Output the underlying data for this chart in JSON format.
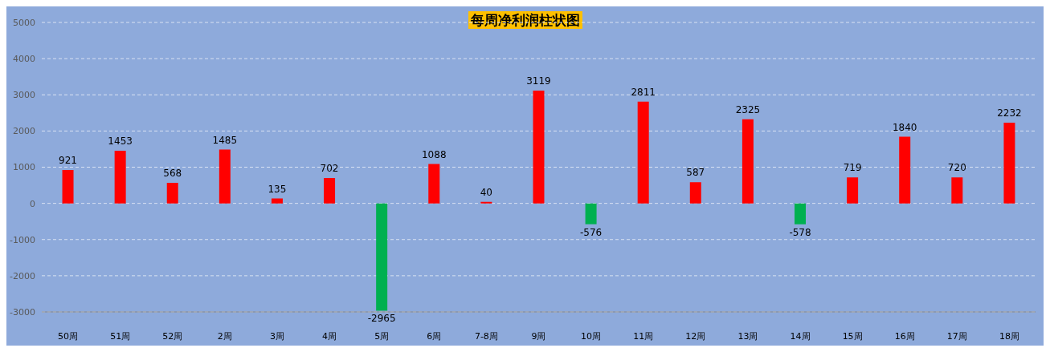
{
  "chart_data": {
    "type": "bar",
    "title": "每周净利润柱状图",
    "categories": [
      "50周",
      "51周",
      "52周",
      "2周",
      "3周",
      "4周",
      "5周",
      "6周",
      "7-8周",
      "9周",
      "10周",
      "11周",
      "12周",
      "13周",
      "14周",
      "15周",
      "16周",
      "17周",
      "18周"
    ],
    "values": [
      921,
      1453,
      568,
      1485,
      135,
      702,
      -2965,
      1088,
      40,
      3119,
      -576,
      2811,
      587,
      2325,
      -578,
      719,
      1840,
      720,
      2232
    ],
    "colors": [
      "#ff0000",
      "#ff0000",
      "#ff0000",
      "#ff0000",
      "#ff0000",
      "#ff0000",
      "#00b050",
      "#ff0000",
      "#ff0000",
      "#ff0000",
      "#00b050",
      "#ff0000",
      "#ff0000",
      "#ff0000",
      "#00b050",
      "#ff0000",
      "#ff0000",
      "#ff0000",
      "#ff0000"
    ],
    "ylim": [
      -3000,
      5000
    ],
    "yticks": [
      -3000,
      -2000,
      -1000,
      0,
      1000,
      2000,
      3000,
      4000,
      5000
    ],
    "grid": "y",
    "data_labels": true
  }
}
